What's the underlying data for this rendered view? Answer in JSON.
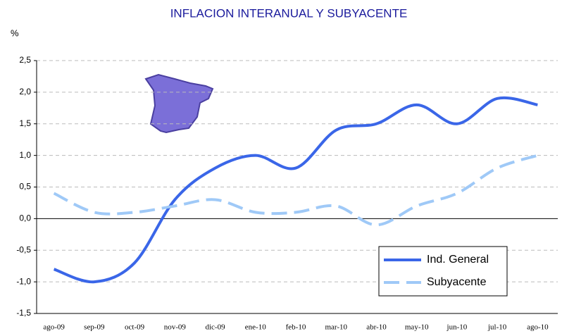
{
  "chart_data": {
    "type": "line",
    "title": "INFLACION INTERANUAL Y SUBYACENTE",
    "y_label": "%",
    "categories": [
      "ago-09",
      "sep-09",
      "oct-09",
      "nov-09",
      "dic-09",
      "ene-10",
      "feb-10",
      "mar-10",
      "abr-10",
      "may-10",
      "jun-10",
      "jul-10",
      "ago-10"
    ],
    "series": [
      {
        "name": "Ind. General",
        "color": "#3a66e8",
        "dash": false,
        "values": [
          -0.8,
          -1.0,
          -0.7,
          0.3,
          0.8,
          1.0,
          0.8,
          1.4,
          1.5,
          1.8,
          1.5,
          1.9,
          1.8
        ]
      },
      {
        "name": "Subyacente",
        "color": "#9fc9f7",
        "dash": true,
        "values": [
          0.4,
          0.1,
          0.1,
          0.2,
          0.3,
          0.1,
          0.1,
          0.2,
          -0.1,
          0.2,
          0.4,
          0.8,
          1.0
        ]
      }
    ],
    "ylim": [
      -1.5,
      2.5
    ],
    "yticks": [
      {
        "value": -1.5,
        "label": "-1,5"
      },
      {
        "value": -1.0,
        "label": "-1,0"
      },
      {
        "value": -0.5,
        "label": "-0,5"
      },
      {
        "value": 0,
        "label": "0,0"
      },
      {
        "value": 0.5,
        "label": "0,5"
      },
      {
        "value": 1.0,
        "label": "1,0"
      },
      {
        "value": 1.5,
        "label": "1,5"
      },
      {
        "value": 2.0,
        "label": "2,0"
      },
      {
        "value": 2.5,
        "label": "2,5"
      }
    ],
    "grid": true,
    "legend": "lower right"
  }
}
